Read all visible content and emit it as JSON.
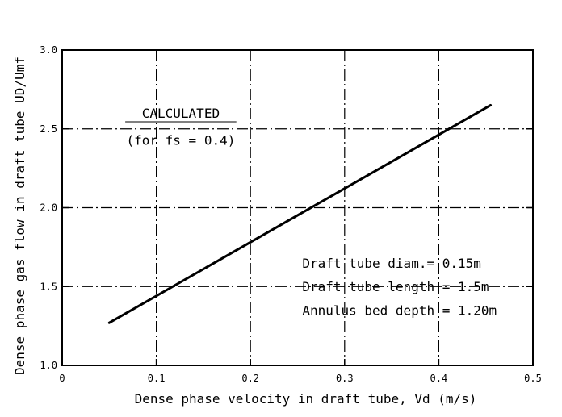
{
  "chart_data": {
    "type": "line",
    "title": "",
    "xlabel": "Dense phase velocity in draft tube, Vd (m/s)",
    "ylabel": "Dense phase gas flow in draft tube UD/Umf",
    "xlim": [
      0,
      0.5
    ],
    "ylim": [
      1.0,
      3.0
    ],
    "x_ticks": [
      "0",
      "0.1",
      "0.2",
      "0.3",
      "0.4",
      "0.5"
    ],
    "y_ticks": [
      "1.0",
      "1.5",
      "2.0",
      "2.5",
      "3.0"
    ],
    "grid": true,
    "series": [
      {
        "x": [
          0.05,
          0.455
        ],
        "y": [
          1.27,
          2.65
        ]
      }
    ],
    "annotations": {
      "calculated": "CALCULATED",
      "fs_note": "(for fs = 0.4)",
      "diam": "Draft tube diam.= 0.15m",
      "length": "Draft tube length = 1.5m",
      "depth": "Annulus bed depth = 1.20m"
    }
  }
}
